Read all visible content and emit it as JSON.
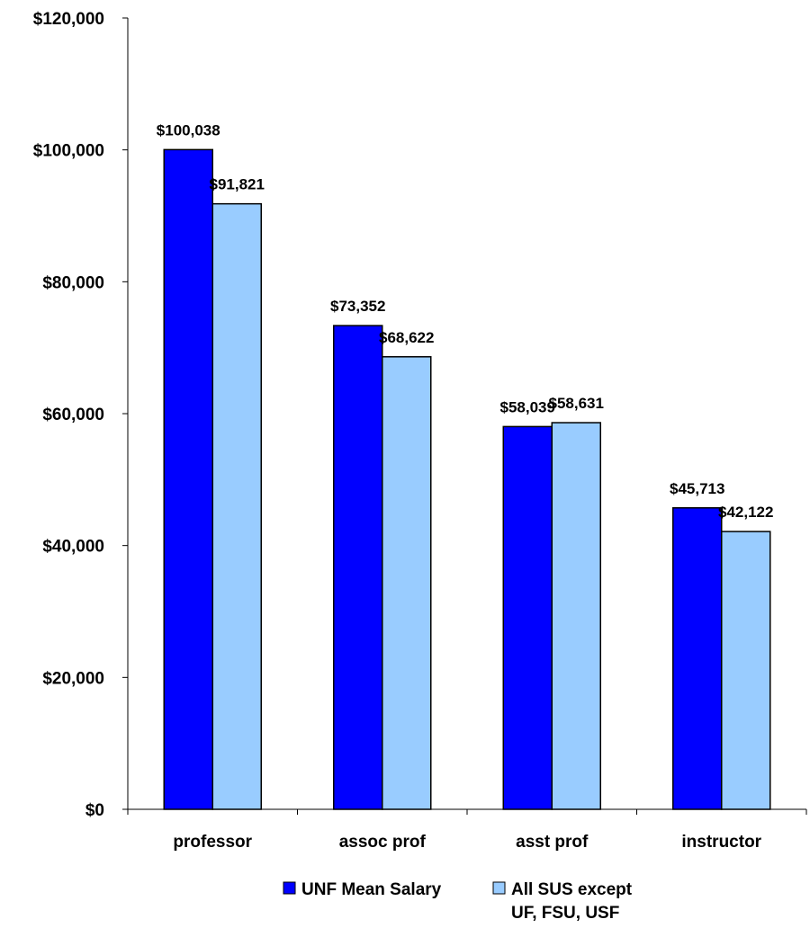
{
  "chart_data": {
    "type": "bar",
    "categories": [
      "professor",
      "assoc prof",
      "asst prof",
      "instructor"
    ],
    "series": [
      {
        "name": "UNF Mean Salary",
        "values": [
          100038,
          73352,
          58039,
          45713
        ],
        "color": "#0000ff",
        "labels": [
          "$100,038",
          "$73,352",
          "$58,039",
          "$45,713"
        ]
      },
      {
        "name": "All SUS except UF, FSU, USF",
        "values": [
          91821,
          68622,
          58631,
          42122
        ],
        "color": "#99ccff",
        "labels": [
          "$91,821",
          "$68,622",
          "$58,631",
          "$42,122"
        ]
      }
    ],
    "yticks": [
      0,
      20000,
      40000,
      60000,
      80000,
      100000,
      120000
    ],
    "ytick_labels": [
      "$0",
      "$20,000",
      "$40,000",
      "$60,000",
      "$80,000",
      "$100,000",
      "$120,000"
    ],
    "ylim": [
      0,
      120000
    ],
    "title": "",
    "xlabel": "",
    "ylabel": "",
    "grid": false,
    "legend_position": "bottom",
    "legend_lines": [
      [
        "UNF Mean Salary"
      ],
      [
        "All SUS except",
        "UF, FSU, USF"
      ]
    ]
  }
}
